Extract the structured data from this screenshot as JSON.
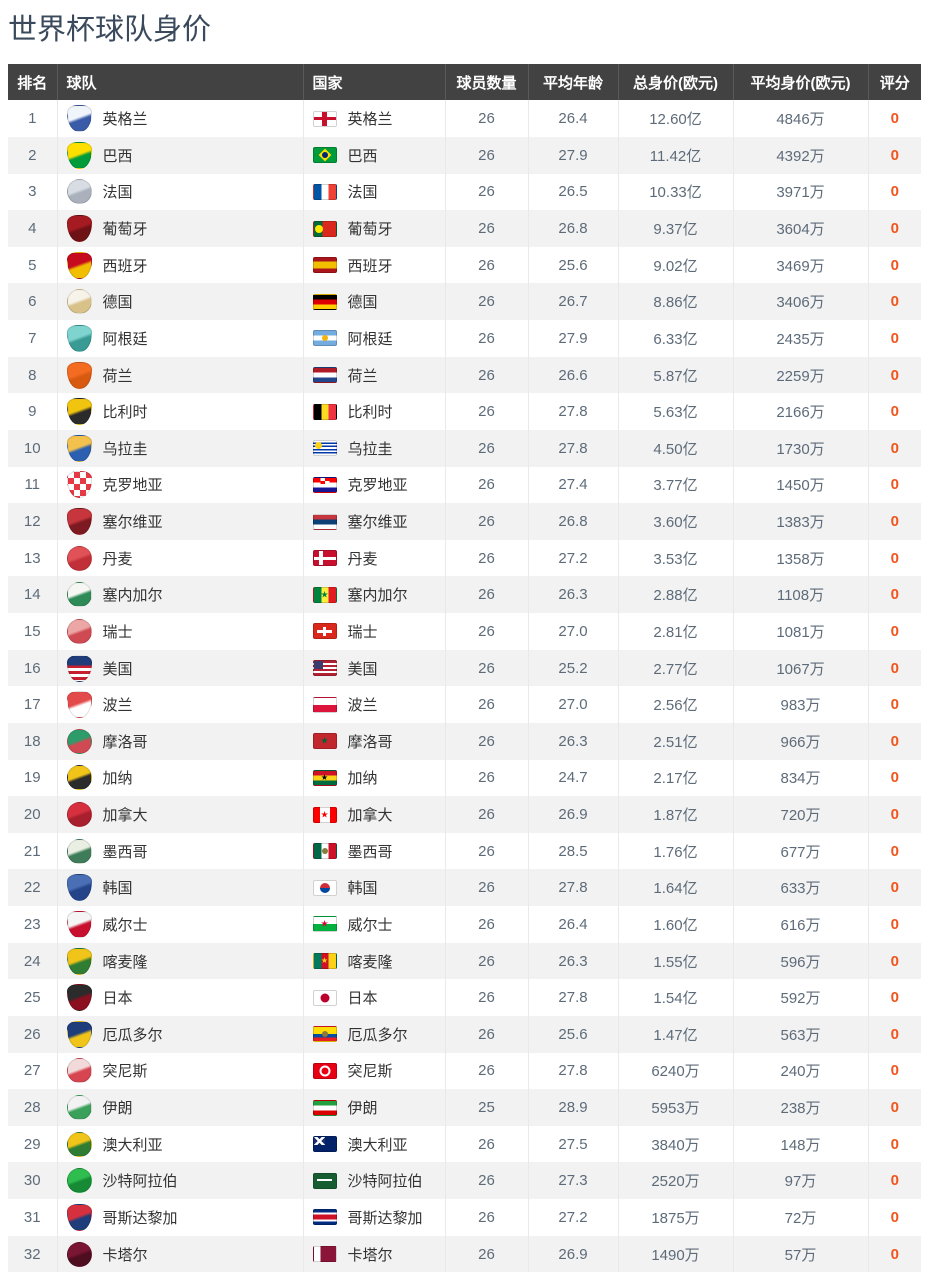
{
  "title": "世界杯球队身价",
  "colors": {
    "title_text": "#3a4a5c",
    "header_bg": "#424242",
    "header_text": "#ffffff",
    "row_alt_bg": "#f2f2f2",
    "divider": "#e9e9e9",
    "value_text": "#5d6b79",
    "team_text": "#333333",
    "rating_orange": "#f0561d"
  },
  "table": {
    "columns": [
      {
        "key": "rank",
        "label": "排名"
      },
      {
        "key": "team",
        "label": "球队"
      },
      {
        "key": "country",
        "label": "国家"
      },
      {
        "key": "players",
        "label": "球员数量"
      },
      {
        "key": "avg_age",
        "label": "平均年龄"
      },
      {
        "key": "total_value",
        "label": "总身价(欧元)"
      },
      {
        "key": "avg_value",
        "label": "平均身价(欧元)"
      },
      {
        "key": "rating",
        "label": "评分"
      }
    ],
    "rows": [
      {
        "rank": "1",
        "team": "英格兰",
        "country": "英格兰",
        "players": "26",
        "avg_age": "26.4",
        "total_value": "12.60亿",
        "avg_value": "4846万",
        "rating": "0",
        "crest": {
          "shape": "shield",
          "colors": [
            "#f0f4fb",
            "#3a5ba8"
          ]
        },
        "flag": {
          "t": "solid",
          "c": [
            "#ffffff"
          ],
          "e": {
            "s": "cross",
            "c": "#c8102e"
          }
        }
      },
      {
        "rank": "2",
        "team": "巴西",
        "country": "巴西",
        "players": "26",
        "avg_age": "27.9",
        "total_value": "11.42亿",
        "avg_value": "4392万",
        "rating": "0",
        "crest": {
          "shape": "shield",
          "colors": [
            "#ffdf00",
            "#009b3a"
          ]
        },
        "flag": {
          "t": "solid",
          "c": [
            "#009b3a"
          ],
          "e": {
            "s": "diamond",
            "c": "#fedf00",
            "sc": "#002776"
          }
        }
      },
      {
        "rank": "3",
        "team": "法国",
        "country": "法国",
        "players": "26",
        "avg_age": "26.5",
        "total_value": "10.33亿",
        "avg_value": "3971万",
        "rating": "0",
        "crest": {
          "shape": "circle",
          "colors": [
            "#d8dce3",
            "#aab1bc"
          ]
        },
        "flag": {
          "t": "v",
          "c": [
            "#0055A4",
            "#ffffff",
            "#EF4135"
          ]
        }
      },
      {
        "rank": "4",
        "team": "葡萄牙",
        "country": "葡萄牙",
        "players": "26",
        "avg_age": "26.8",
        "total_value": "9.37亿",
        "avg_value": "3604万",
        "rating": "0",
        "crest": {
          "shape": "shield",
          "colors": [
            "#a61b22",
            "#6e1216"
          ]
        },
        "flag": {
          "t": "v",
          "c": [
            "#046A38",
            "#DA291C"
          ],
          "stops": [
            38,
            100
          ],
          "e": {
            "s": "circle",
            "c": "#FFE900",
            "p": "cl",
            "r": 8
          }
        }
      },
      {
        "rank": "5",
        "team": "西班牙",
        "country": "西班牙",
        "players": "26",
        "avg_age": "25.6",
        "total_value": "9.02亿",
        "avg_value": "3469万",
        "rating": "0",
        "crest": {
          "shape": "shield",
          "colors": [
            "#c60b1e",
            "#f1bf00"
          ]
        },
        "flag": {
          "t": "h",
          "c": [
            "#AA151B",
            "#F1BF00",
            "#AA151B"
          ],
          "stops": [
            25,
            75,
            100
          ]
        }
      },
      {
        "rank": "6",
        "team": "德国",
        "country": "德国",
        "players": "26",
        "avg_age": "26.7",
        "total_value": "8.86亿",
        "avg_value": "3406万",
        "rating": "0",
        "crest": {
          "shape": "circle",
          "colors": [
            "#f7f3e8",
            "#d8c28a"
          ]
        },
        "flag": {
          "t": "h",
          "c": [
            "#000000",
            "#DD0000",
            "#FFCE00"
          ]
        }
      },
      {
        "rank": "7",
        "team": "阿根廷",
        "country": "阿根廷",
        "players": "26",
        "avg_age": "27.9",
        "total_value": "6.33亿",
        "avg_value": "2435万",
        "rating": "0",
        "crest": {
          "shape": "shield",
          "colors": [
            "#7fd4cf",
            "#3a9b94"
          ]
        },
        "flag": {
          "t": "h",
          "c": [
            "#74ACDF",
            "#ffffff",
            "#74ACDF"
          ],
          "e": {
            "s": "circle",
            "c": "#F6B40E",
            "r": 6
          }
        }
      },
      {
        "rank": "8",
        "team": "荷兰",
        "country": "荷兰",
        "players": "26",
        "avg_age": "26.6",
        "total_value": "5.87亿",
        "avg_value": "2259万",
        "rating": "0",
        "crest": {
          "shape": "shield",
          "colors": [
            "#f36c21",
            "#d85a10"
          ]
        },
        "flag": {
          "t": "h",
          "c": [
            "#AE1C28",
            "#ffffff",
            "#21468B"
          ]
        }
      },
      {
        "rank": "9",
        "team": "比利时",
        "country": "比利时",
        "players": "26",
        "avg_age": "27.8",
        "total_value": "5.63亿",
        "avg_value": "2166万",
        "rating": "0",
        "crest": {
          "shape": "shield",
          "colors": [
            "#f1c40f",
            "#2b2b2b"
          ]
        },
        "flag": {
          "t": "v",
          "c": [
            "#000000",
            "#FDDA24",
            "#EF3340"
          ]
        }
      },
      {
        "rank": "10",
        "team": "乌拉圭",
        "country": "乌拉圭",
        "players": "26",
        "avg_age": "27.8",
        "total_value": "4.50亿",
        "avg_value": "1730万",
        "rating": "0",
        "crest": {
          "shape": "shield",
          "colors": [
            "#f2c14e",
            "#2b5fb0"
          ]
        },
        "flag": {
          "t": "h",
          "c": [
            "#ffffff",
            "#0038A8",
            "#ffffff",
            "#0038A8",
            "#ffffff",
            "#0038A8",
            "#ffffff",
            "#0038A8",
            "#ffffff"
          ],
          "e": {
            "s": "circle",
            "c": "#FCD116",
            "p": "tl",
            "r": 7
          }
        }
      },
      {
        "rank": "11",
        "team": "克罗地亚",
        "country": "克罗地亚",
        "players": "26",
        "avg_age": "27.4",
        "total_value": "3.77亿",
        "avg_value": "1450万",
        "rating": "0",
        "crest": {
          "shape": "shield",
          "colors": [
            "#e63946",
            "#ffffff"
          ],
          "pattern": "check"
        },
        "flag": {
          "t": "h",
          "c": [
            "#FF0000",
            "#ffffff",
            "#171796"
          ],
          "e": {
            "s": "check",
            "c": "#FF0000",
            "sc": "#ffffff",
            "p": "tc"
          }
        }
      },
      {
        "rank": "12",
        "team": "塞尔维亚",
        "country": "塞尔维亚",
        "players": "26",
        "avg_age": "26.8",
        "total_value": "3.60亿",
        "avg_value": "1383万",
        "rating": "0",
        "crest": {
          "shape": "shield",
          "colors": [
            "#c6363c",
            "#7d1a21"
          ]
        },
        "flag": {
          "t": "h",
          "c": [
            "#C6363C",
            "#0C4076",
            "#ffffff"
          ]
        }
      },
      {
        "rank": "13",
        "team": "丹麦",
        "country": "丹麦",
        "players": "26",
        "avg_age": "27.2",
        "total_value": "3.53亿",
        "avg_value": "1358万",
        "rating": "0",
        "crest": {
          "shape": "circle",
          "colors": [
            "#e05257",
            "#c13038"
          ]
        },
        "flag": {
          "t": "solid",
          "c": [
            "#C8102E"
          ],
          "e": {
            "s": "nordic",
            "c": "#ffffff"
          }
        }
      },
      {
        "rank": "14",
        "team": "塞内加尔",
        "country": "塞内加尔",
        "players": "26",
        "avg_age": "26.3",
        "total_value": "2.88亿",
        "avg_value": "1108万",
        "rating": "0",
        "crest": {
          "shape": "circle",
          "colors": [
            "#f6f6f2",
            "#2e8b57"
          ]
        },
        "flag": {
          "t": "v",
          "c": [
            "#00853F",
            "#FDEF42",
            "#E31B23"
          ],
          "e": {
            "s": "star",
            "c": "#00853F",
            "r": 9
          }
        }
      },
      {
        "rank": "15",
        "team": "瑞士",
        "country": "瑞士",
        "players": "26",
        "avg_age": "27.0",
        "total_value": "2.81亿",
        "avg_value": "1081万",
        "rating": "0",
        "crest": {
          "shape": "circle",
          "colors": [
            "#eda6a6",
            "#cf4a52"
          ]
        },
        "flag": {
          "t": "solid",
          "c": [
            "#DA291C"
          ],
          "e": {
            "s": "plus",
            "c": "#ffffff"
          }
        }
      },
      {
        "rank": "16",
        "team": "美国",
        "country": "美国",
        "players": "26",
        "avg_age": "25.2",
        "total_value": "2.77亿",
        "avg_value": "1067万",
        "rating": "0",
        "crest": {
          "shape": "shield",
          "colors": [
            "#1f3d7a",
            "#c51f30"
          ],
          "pattern": "usa"
        },
        "flag": {
          "t": "h",
          "c": [
            "#B22234",
            "#ffffff",
            "#B22234",
            "#ffffff",
            "#B22234",
            "#ffffff",
            "#B22234"
          ],
          "e": {
            "s": "canton",
            "c": "#3C3B6E"
          }
        }
      },
      {
        "rank": "17",
        "team": "波兰",
        "country": "波兰",
        "players": "26",
        "avg_age": "27.0",
        "total_value": "2.56亿",
        "avg_value": "983万",
        "rating": "0",
        "crest": {
          "shape": "shield",
          "colors": [
            "#e34b4b",
            "#ffffff"
          ]
        },
        "flag": {
          "t": "h",
          "c": [
            "#ffffff",
            "#DC143C"
          ]
        }
      },
      {
        "rank": "18",
        "team": "摩洛哥",
        "country": "摩洛哥",
        "players": "26",
        "avg_age": "26.3",
        "total_value": "2.51亿",
        "avg_value": "966万",
        "rating": "0",
        "crest": {
          "shape": "circle",
          "colors": [
            "#2e9b6b",
            "#cf4a52"
          ]
        },
        "flag": {
          "t": "solid",
          "c": [
            "#C1272D"
          ],
          "e": {
            "s": "star",
            "c": "#006233",
            "r": 9
          }
        }
      },
      {
        "rank": "19",
        "team": "加纳",
        "country": "加纳",
        "players": "26",
        "avg_age": "24.7",
        "total_value": "2.17亿",
        "avg_value": "834万",
        "rating": "0",
        "crest": {
          "shape": "circle",
          "colors": [
            "#f0c419",
            "#2b2b2b"
          ]
        },
        "flag": {
          "t": "h",
          "c": [
            "#CE1126",
            "#FCD116",
            "#006B3F"
          ],
          "e": {
            "s": "star",
            "c": "#000000",
            "r": 8
          }
        }
      },
      {
        "rank": "20",
        "team": "加拿大",
        "country": "加拿大",
        "players": "26",
        "avg_age": "26.9",
        "total_value": "1.87亿",
        "avg_value": "720万",
        "rating": "0",
        "crest": {
          "shape": "circle",
          "colors": [
            "#d6303f",
            "#a81f2d"
          ]
        },
        "flag": {
          "t": "v",
          "c": [
            "#FF0000",
            "#ffffff",
            "#FF0000"
          ],
          "stops": [
            28,
            72,
            100
          ],
          "e": {
            "s": "star",
            "c": "#FF0000",
            "r": 9
          }
        }
      },
      {
        "rank": "21",
        "team": "墨西哥",
        "country": "墨西哥",
        "players": "26",
        "avg_age": "28.5",
        "total_value": "1.76亿",
        "avg_value": "677万",
        "rating": "0",
        "crest": {
          "shape": "circle",
          "colors": [
            "#e9efe2",
            "#3f7d5a"
          ]
        },
        "flag": {
          "t": "v",
          "c": [
            "#006847",
            "#ffffff",
            "#CE1126"
          ],
          "e": {
            "s": "circle",
            "c": "#8a7a3b",
            "r": 6
          }
        }
      },
      {
        "rank": "22",
        "team": "韩国",
        "country": "韩国",
        "players": "26",
        "avg_age": "27.8",
        "total_value": "1.64亿",
        "avg_value": "633万",
        "rating": "0",
        "crest": {
          "shape": "shield",
          "colors": [
            "#4a6fb5",
            "#24448a"
          ]
        },
        "flag": {
          "t": "solid",
          "c": [
            "#ffffff"
          ],
          "e": {
            "s": "taeguk",
            "c": "#CD2E3A",
            "sc": "#0047A0",
            "r": 10
          }
        }
      },
      {
        "rank": "23",
        "team": "威尔士",
        "country": "威尔士",
        "players": "26",
        "avg_age": "26.4",
        "total_value": "1.60亿",
        "avg_value": "616万",
        "rating": "0",
        "crest": {
          "shape": "shield",
          "colors": [
            "#f5f5f5",
            "#c8102e"
          ]
        },
        "flag": {
          "t": "h",
          "c": [
            "#ffffff",
            "#00B140"
          ],
          "e": {
            "s": "star",
            "c": "#D30731",
            "r": 9
          }
        }
      },
      {
        "rank": "24",
        "team": "喀麦隆",
        "country": "喀麦隆",
        "players": "26",
        "avg_age": "26.3",
        "total_value": "1.55亿",
        "avg_value": "596万",
        "rating": "0",
        "crest": {
          "shape": "shield",
          "colors": [
            "#f0c419",
            "#2e7d32"
          ]
        },
        "flag": {
          "t": "v",
          "c": [
            "#007A5E",
            "#CE1126",
            "#FCD116"
          ],
          "e": {
            "s": "star",
            "c": "#FCD116",
            "r": 8
          }
        }
      },
      {
        "rank": "25",
        "team": "日本",
        "country": "日本",
        "players": "26",
        "avg_age": "27.8",
        "total_value": "1.54亿",
        "avg_value": "592万",
        "rating": "0",
        "crest": {
          "shape": "shield",
          "colors": [
            "#2b2b2b",
            "#8b0f1f"
          ]
        },
        "flag": {
          "t": "solid",
          "c": [
            "#ffffff"
          ],
          "e": {
            "s": "circle",
            "c": "#BC002D",
            "r": 9
          }
        }
      },
      {
        "rank": "26",
        "team": "厄瓜多尔",
        "country": "厄瓜多尔",
        "players": "26",
        "avg_age": "25.6",
        "total_value": "1.47亿",
        "avg_value": "563万",
        "rating": "0",
        "crest": {
          "shape": "shield",
          "colors": [
            "#1f3d7a",
            "#f0c419"
          ]
        },
        "flag": {
          "t": "h",
          "c": [
            "#FFDD00",
            "#034EA2",
            "#EC1C24"
          ],
          "stops": [
            50,
            75,
            100
          ],
          "e": {
            "s": "circle",
            "c": "#8a7a3b",
            "r": 6
          }
        }
      },
      {
        "rank": "27",
        "team": "突尼斯",
        "country": "突尼斯",
        "players": "26",
        "avg_age": "27.8",
        "total_value": "6240万",
        "avg_value": "240万",
        "rating": "0",
        "crest": {
          "shape": "circle",
          "colors": [
            "#f3dada",
            "#d64550"
          ]
        },
        "flag": {
          "t": "solid",
          "c": [
            "#E70013"
          ],
          "e": {
            "s": "crescent",
            "c": "#ffffff",
            "sc": "#E70013",
            "r": 11
          }
        }
      },
      {
        "rank": "28",
        "team": "伊朗",
        "country": "伊朗",
        "players": "25",
        "avg_age": "28.9",
        "total_value": "5953万",
        "avg_value": "238万",
        "rating": "0",
        "crest": {
          "shape": "circle",
          "colors": [
            "#f2f2f2",
            "#3aa05a"
          ]
        },
        "flag": {
          "t": "h",
          "c": [
            "#239F40",
            "#ffffff",
            "#DA0000"
          ]
        }
      },
      {
        "rank": "29",
        "team": "澳大利亚",
        "country": "澳大利亚",
        "players": "26",
        "avg_age": "27.5",
        "total_value": "3840万",
        "avg_value": "148万",
        "rating": "0",
        "crest": {
          "shape": "circle",
          "colors": [
            "#f0c419",
            "#2e7d32"
          ]
        },
        "flag": {
          "t": "solid",
          "c": [
            "#012169"
          ],
          "e": {
            "s": "uj",
            "c": "#ffffff",
            "sc": "#C8102E"
          }
        }
      },
      {
        "rank": "30",
        "team": "沙特阿拉伯",
        "country": "沙特阿拉伯",
        "players": "26",
        "avg_age": "27.3",
        "total_value": "2520万",
        "avg_value": "97万",
        "rating": "0",
        "crest": {
          "shape": "circle",
          "colors": [
            "#2ebd4e",
            "#168a35"
          ]
        },
        "flag": {
          "t": "solid",
          "c": [
            "#165d31"
          ],
          "e": {
            "s": "bar",
            "c": "#ffffff"
          }
        }
      },
      {
        "rank": "31",
        "team": "哥斯达黎加",
        "country": "哥斯达黎加",
        "players": "26",
        "avg_age": "27.2",
        "total_value": "1875万",
        "avg_value": "72万",
        "rating": "0",
        "crest": {
          "shape": "shield",
          "colors": [
            "#d6303f",
            "#1f3d7a"
          ]
        },
        "flag": {
          "t": "h",
          "c": [
            "#002B7F",
            "#ffffff",
            "#CE1126",
            "#ffffff",
            "#002B7F"
          ],
          "stops": [
            17,
            33,
            67,
            83,
            100
          ]
        }
      },
      {
        "rank": "32",
        "team": "卡塔尔",
        "country": "卡塔尔",
        "players": "26",
        "avg_age": "26.9",
        "total_value": "1490万",
        "avg_value": "57万",
        "rating": "0",
        "crest": {
          "shape": "circle",
          "colors": [
            "#7a1533",
            "#4f0d20"
          ]
        },
        "flag": {
          "t": "v",
          "c": [
            "#ffffff",
            "#8A1538"
          ],
          "stops": [
            30,
            100
          ]
        }
      }
    ]
  }
}
